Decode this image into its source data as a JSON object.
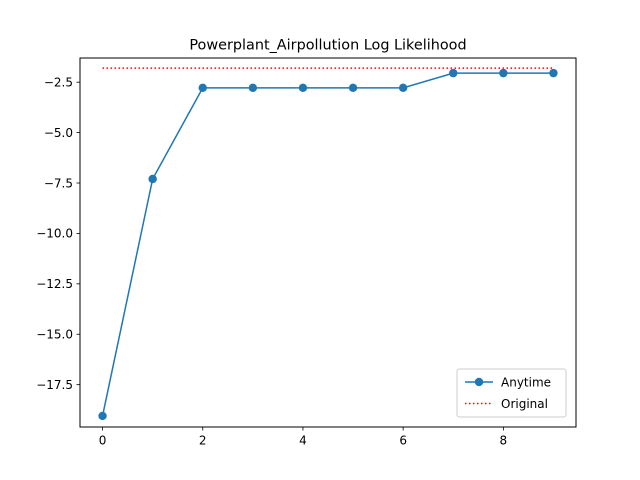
{
  "chart_data": {
    "type": "line",
    "title": "Powerplant_Airpollution Log Likelihood",
    "xlabel": "",
    "ylabel": "",
    "xlim": [
      -0.45,
      9.45
    ],
    "ylim": [
      -19.6,
      -1.3
    ],
    "x_ticks": [
      0,
      2,
      4,
      6,
      8
    ],
    "y_ticks": [
      -2.5,
      -5.0,
      -7.5,
      -10.0,
      -12.5,
      -15.0,
      -17.5
    ],
    "x_tick_labels": [
      "0",
      "2",
      "4",
      "6",
      "8"
    ],
    "y_tick_labels": [
      "−2.5",
      "−5.0",
      "−7.5",
      "−10.0",
      "−12.5",
      "−15.0",
      "−17.5"
    ],
    "grid": false,
    "legend_position": "lower right",
    "series": [
      {
        "name": "Anytime",
        "style": "solid-marker",
        "color": "#1f77b4",
        "x": [
          0,
          1,
          2,
          3,
          4,
          5,
          6,
          7,
          8,
          9
        ],
        "y": [
          -19.05,
          -7.3,
          -2.78,
          -2.78,
          -2.78,
          -2.78,
          -2.78,
          -2.05,
          -2.05,
          -2.05
        ]
      },
      {
        "name": "Original",
        "style": "dotted",
        "color": "#ff0000",
        "x": [
          0,
          9
        ],
        "y": [
          -1.8,
          -1.8
        ]
      }
    ]
  }
}
